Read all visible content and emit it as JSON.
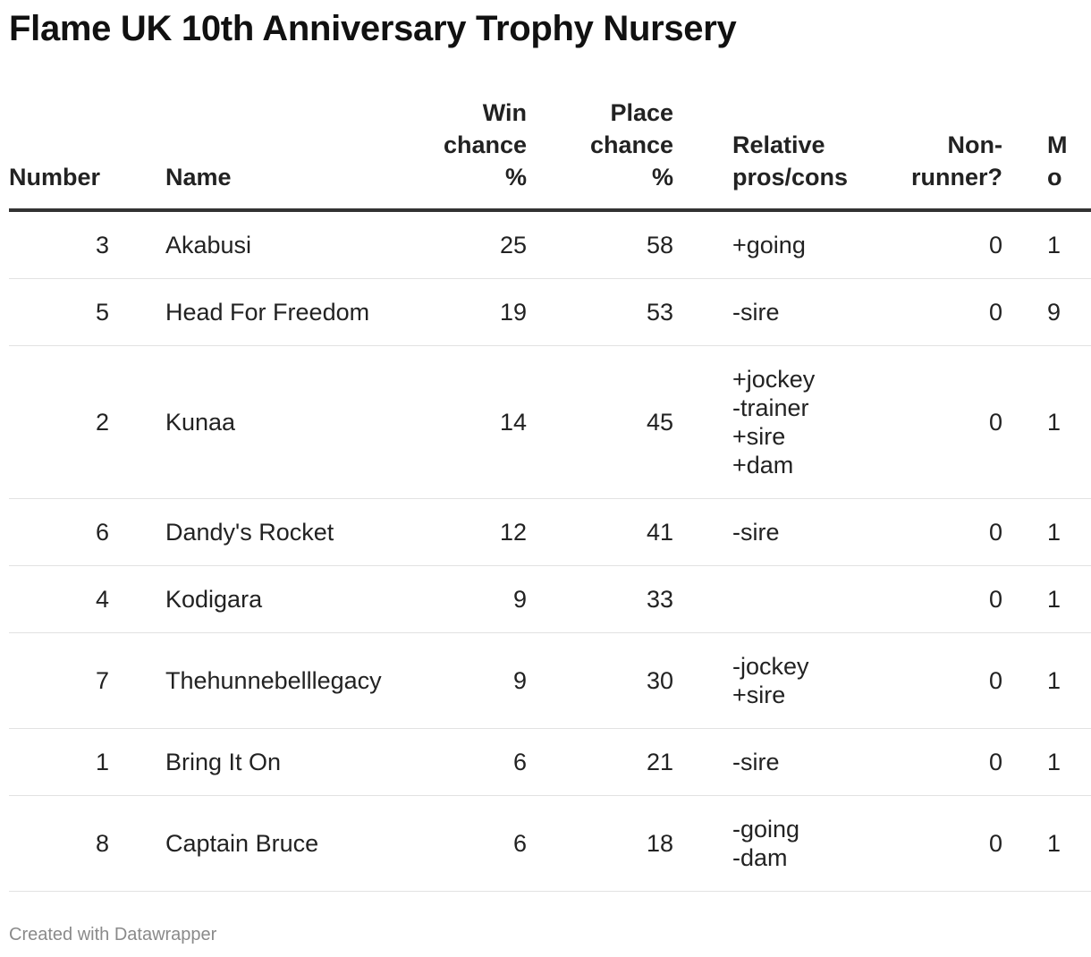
{
  "title": "Flame UK 10th Anniversary Trophy Nursery",
  "columns": {
    "number": "Number",
    "name": "Name",
    "win_line1": "Win",
    "win_line2": "chance",
    "win_line3": "%",
    "place_line1": "Place",
    "place_line2": "chance",
    "place_line3": "%",
    "pros_line1": "Relative",
    "pros_line2": "pros/cons",
    "nonrunner_line1": "Non-",
    "nonrunner_line2": "runner?",
    "more_line1": "M",
    "more_line2": "o"
  },
  "rows": [
    {
      "number": "3",
      "name": "Akabusi",
      "win": "25",
      "place": "58",
      "pros": "+going",
      "nonrunner": "0",
      "more": "1"
    },
    {
      "number": "5",
      "name": "Head For Freedom",
      "win": "19",
      "place": "53",
      "pros": "-sire",
      "nonrunner": "0",
      "more": "9"
    },
    {
      "number": "2",
      "name": "Kunaa",
      "win": "14",
      "place": "45",
      "pros": "+jockey\n-trainer\n+sire\n+dam",
      "nonrunner": "0",
      "more": "1"
    },
    {
      "number": "6",
      "name": "Dandy's Rocket",
      "win": "12",
      "place": "41",
      "pros": "-sire",
      "nonrunner": "0",
      "more": "1"
    },
    {
      "number": "4",
      "name": "Kodigara",
      "win": "9",
      "place": "33",
      "pros": "",
      "nonrunner": "0",
      "more": "1"
    },
    {
      "number": "7",
      "name": "Thehunnebelllegacy",
      "win": "9",
      "place": "30",
      "pros": "-jockey\n+sire",
      "nonrunner": "0",
      "more": "1"
    },
    {
      "number": "1",
      "name": "Bring It On",
      "win": "6",
      "place": "21",
      "pros": "-sire",
      "nonrunner": "0",
      "more": "1"
    },
    {
      "number": "8",
      "name": "Captain Bruce",
      "win": "6",
      "place": "18",
      "pros": "-going\n-dam",
      "nonrunner": "0",
      "more": "1"
    }
  ],
  "footer": "Created with Datawrapper",
  "colors": {
    "text": "#222222",
    "header_rule": "#333333",
    "row_rule": "#e2e2e2",
    "footer_text": "#8a8a8a"
  }
}
